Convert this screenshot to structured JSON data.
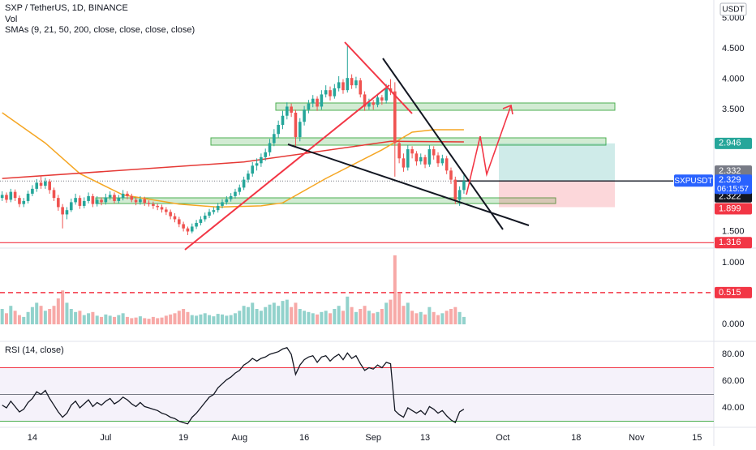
{
  "chart_data": {
    "type": "candlestick",
    "title": "SXP / TetherUS, 1D, BINANCE",
    "volume_label": "Vol",
    "sma_label": "SMAs (9, 21, 50, 200, close, close, close, close)",
    "rsi_label": "RSI (14, close)",
    "currency": "USDT",
    "symbol": "SXPUSDT",
    "last_price": 2.329,
    "countdown": "06:15:57",
    "up_color": "#26a69a",
    "down_color": "#ef5350",
    "xlim": [
      -0.5,
      164.9
    ],
    "xticks": [
      {
        "value": 7,
        "label": "14"
      },
      {
        "value": 24,
        "label": "Jul"
      },
      {
        "value": 42,
        "label": "19"
      },
      {
        "value": 55,
        "label": "Aug"
      },
      {
        "value": 70,
        "label": "16"
      },
      {
        "value": 86,
        "label": "Sep"
      },
      {
        "value": 98,
        "label": "13"
      },
      {
        "value": 116,
        "label": "Oct"
      },
      {
        "value": 133,
        "label": "18"
      },
      {
        "value": 147,
        "label": "Nov"
      },
      {
        "value": 161,
        "label": "15"
      }
    ],
    "ylim": [
      1.24,
      5.3
    ],
    "yticks": [
      {
        "value": 5,
        "label": "5.000"
      },
      {
        "value": 4.5,
        "label": "4.500"
      },
      {
        "value": 4,
        "label": "4.000"
      },
      {
        "value": 3.5,
        "label": "3.500"
      },
      {
        "value": 1.5,
        "label": "1.500"
      }
    ],
    "candles": [
      [
        2.05,
        2.16,
        2.0,
        2.1
      ],
      [
        2.1,
        2.14,
        1.97,
        2.02
      ],
      [
        2.02,
        2.2,
        1.98,
        2.15
      ],
      [
        2.15,
        2.19,
        2.0,
        2.05
      ],
      [
        2.05,
        2.09,
        1.9,
        1.95
      ],
      [
        1.95,
        2.05,
        1.9,
        2.0
      ],
      [
        2.0,
        2.17,
        1.96,
        2.12
      ],
      [
        2.12,
        2.26,
        2.08,
        2.2
      ],
      [
        2.2,
        2.36,
        2.15,
        2.3
      ],
      [
        2.3,
        2.42,
        2.2,
        2.25
      ],
      [
        2.25,
        2.38,
        2.2,
        2.32
      ],
      [
        2.32,
        2.36,
        2.12,
        2.18
      ],
      [
        2.18,
        2.22,
        2.0,
        2.05
      ],
      [
        2.05,
        2.1,
        1.84,
        1.9
      ],
      [
        1.9,
        1.95,
        1.55,
        1.78
      ],
      [
        1.78,
        1.9,
        1.7,
        1.85
      ],
      [
        1.85,
        2.04,
        1.82,
        1.98
      ],
      [
        1.98,
        2.12,
        1.94,
        2.05
      ],
      [
        2.05,
        2.09,
        1.87,
        1.92
      ],
      [
        1.92,
        2.06,
        1.88,
        2.0
      ],
      [
        2.0,
        2.14,
        1.96,
        2.08
      ],
      [
        2.08,
        2.12,
        1.9,
        1.95
      ],
      [
        1.95,
        2.08,
        1.91,
        2.02
      ],
      [
        2.02,
        2.06,
        1.93,
        1.98
      ],
      [
        1.98,
        2.12,
        1.94,
        2.06
      ],
      [
        2.06,
        2.16,
        2.02,
        2.1
      ],
      [
        2.1,
        2.14,
        1.96,
        2.0
      ],
      [
        2.0,
        2.1,
        1.96,
        2.05
      ],
      [
        2.05,
        2.18,
        2.01,
        2.12
      ],
      [
        2.12,
        2.16,
        2.03,
        2.08
      ],
      [
        2.08,
        2.12,
        1.98,
        2.02
      ],
      [
        2.02,
        2.06,
        1.93,
        1.98
      ],
      [
        1.98,
        2.08,
        1.94,
        2.03
      ],
      [
        2.03,
        2.07,
        1.92,
        1.97
      ],
      [
        1.97,
        2.01,
        1.91,
        1.95
      ],
      [
        1.95,
        1.99,
        1.87,
        1.92
      ],
      [
        1.92,
        1.96,
        1.85,
        1.9
      ],
      [
        1.9,
        1.94,
        1.81,
        1.86
      ],
      [
        1.86,
        1.9,
        1.77,
        1.82
      ],
      [
        1.82,
        1.86,
        1.7,
        1.75
      ],
      [
        1.75,
        1.8,
        1.65,
        1.7
      ],
      [
        1.7,
        1.74,
        1.57,
        1.62
      ],
      [
        1.62,
        1.66,
        1.5,
        1.55
      ],
      [
        1.55,
        1.58,
        1.44,
        1.5
      ],
      [
        1.5,
        1.63,
        1.47,
        1.58
      ],
      [
        1.58,
        1.69,
        1.54,
        1.64
      ],
      [
        1.64,
        1.75,
        1.6,
        1.7
      ],
      [
        1.7,
        1.81,
        1.66,
        1.76
      ],
      [
        1.76,
        1.87,
        1.72,
        1.82
      ],
      [
        1.82,
        1.9,
        1.78,
        1.85
      ],
      [
        1.85,
        1.97,
        1.81,
        1.92
      ],
      [
        1.92,
        2.03,
        1.88,
        1.98
      ],
      [
        1.98,
        2.08,
        1.94,
        2.03
      ],
      [
        2.03,
        2.13,
        1.99,
        2.08
      ],
      [
        2.08,
        2.2,
        2.04,
        2.15
      ],
      [
        2.15,
        2.27,
        2.1,
        2.22
      ],
      [
        2.22,
        2.4,
        2.18,
        2.35
      ],
      [
        2.35,
        2.5,
        2.3,
        2.45
      ],
      [
        2.45,
        2.64,
        2.4,
        2.58
      ],
      [
        2.58,
        2.7,
        2.5,
        2.62
      ],
      [
        2.62,
        2.78,
        2.56,
        2.72
      ],
      [
        2.72,
        2.86,
        2.66,
        2.8
      ],
      [
        2.8,
        3.02,
        2.74,
        2.95
      ],
      [
        2.95,
        3.18,
        2.9,
        3.1
      ],
      [
        3.1,
        3.32,
        3.04,
        3.25
      ],
      [
        3.25,
        3.48,
        3.18,
        3.4
      ],
      [
        3.4,
        3.62,
        3.34,
        3.55
      ],
      [
        3.55,
        3.6,
        3.38,
        3.45
      ],
      [
        3.45,
        3.5,
        2.88,
        3.05
      ],
      [
        3.05,
        3.36,
        2.98,
        3.3
      ],
      [
        3.3,
        3.56,
        3.24,
        3.5
      ],
      [
        3.5,
        3.66,
        3.44,
        3.6
      ],
      [
        3.6,
        3.74,
        3.54,
        3.68
      ],
      [
        3.68,
        3.72,
        3.48,
        3.55
      ],
      [
        3.55,
        3.82,
        3.5,
        3.75
      ],
      [
        3.75,
        3.9,
        3.7,
        3.82
      ],
      [
        3.82,
        3.88,
        3.65,
        3.72
      ],
      [
        3.72,
        3.92,
        3.68,
        3.85
      ],
      [
        3.85,
        4.05,
        3.8,
        3.95
      ],
      [
        3.95,
        4.0,
        3.76,
        3.82
      ],
      [
        3.82,
        4.55,
        3.78,
        4.02
      ],
      [
        4.02,
        4.08,
        3.84,
        3.9
      ],
      [
        3.9,
        4.04,
        3.85,
        3.98
      ],
      [
        3.98,
        4.02,
        3.7,
        3.75
      ],
      [
        3.75,
        3.8,
        3.48,
        3.55
      ],
      [
        3.55,
        3.68,
        3.5,
        3.62
      ],
      [
        3.62,
        3.66,
        3.5,
        3.58
      ],
      [
        3.58,
        3.76,
        3.54,
        3.7
      ],
      [
        3.7,
        3.74,
        3.58,
        3.65
      ],
      [
        3.65,
        3.92,
        3.6,
        3.85
      ],
      [
        3.85,
        4.0,
        3.74,
        3.8
      ],
      [
        3.8,
        3.95,
        2.4,
        2.95
      ],
      [
        2.95,
        3.0,
        2.62,
        2.7
      ],
      [
        2.7,
        2.78,
        2.48,
        2.55
      ],
      [
        2.55,
        2.92,
        2.5,
        2.85
      ],
      [
        2.85,
        2.9,
        2.7,
        2.78
      ],
      [
        2.78,
        2.82,
        2.58,
        2.65
      ],
      [
        2.65,
        2.78,
        2.6,
        2.72
      ],
      [
        2.72,
        2.76,
        2.54,
        2.6
      ],
      [
        2.6,
        2.92,
        2.56,
        2.85
      ],
      [
        2.85,
        2.9,
        2.68,
        2.75
      ],
      [
        2.75,
        2.8,
        2.56,
        2.62
      ],
      [
        2.62,
        2.76,
        2.58,
        2.7
      ],
      [
        2.7,
        2.74,
        2.44,
        2.5
      ],
      [
        2.5,
        2.55,
        2.28,
        2.35
      ],
      [
        2.35,
        2.4,
        1.95,
        2.02
      ],
      [
        2.02,
        2.24,
        1.92,
        2.18
      ],
      [
        2.18,
        2.45,
        2.12,
        2.329
      ]
    ],
    "smas": [
      {
        "color": "#f5a623",
        "x": [
          0,
          10,
          18,
          28,
          41,
          50,
          60,
          65,
          75,
          88,
          95,
          100,
          107
        ],
        "values": [
          3.45,
          2.95,
          2.45,
          2.1,
          1.95,
          1.9,
          1.92,
          1.97,
          2.37,
          2.84,
          3.13,
          3.17,
          3.17
        ]
      },
      {
        "color": "#e53935",
        "x": [
          0,
          56,
          90,
          107
        ],
        "values": [
          2.37,
          2.64,
          2.98,
          2.97
        ]
      }
    ],
    "levels": [
      {
        "value": 1.316,
        "color": "#f23645"
      }
    ],
    "position": {
      "target": 2.946,
      "stop": 1.899
    },
    "price_labels": [
      {
        "value": 2.332,
        "color": "#787b86"
      },
      {
        "value": 2.322,
        "color": "#131722"
      }
    ],
    "volume": {
      "ylim": [
        -0.263,
        1.25
      ],
      "yticks": [
        {
          "value": 1,
          "label": "1.000"
        },
        {
          "value": 0,
          "label": "0.000"
        }
      ],
      "level": {
        "value": 0.515,
        "color": "#f23645"
      },
      "values": [
        0.25,
        0.18,
        0.3,
        0.22,
        0.15,
        0.12,
        0.2,
        0.28,
        0.35,
        0.3,
        0.22,
        0.25,
        0.3,
        0.42,
        0.55,
        0.35,
        0.25,
        0.2,
        0.22,
        0.15,
        0.18,
        0.2,
        0.14,
        0.12,
        0.16,
        0.14,
        0.12,
        0.15,
        0.18,
        0.12,
        0.1,
        0.11,
        0.13,
        0.1,
        0.09,
        0.12,
        0.1,
        0.11,
        0.14,
        0.16,
        0.18,
        0.22,
        0.25,
        0.2,
        0.15,
        0.14,
        0.16,
        0.18,
        0.15,
        0.13,
        0.17,
        0.16,
        0.14,
        0.15,
        0.18,
        0.22,
        0.3,
        0.28,
        0.35,
        0.25,
        0.22,
        0.28,
        0.32,
        0.35,
        0.3,
        0.38,
        0.4,
        0.28,
        0.35,
        0.25,
        0.22,
        0.2,
        0.18,
        0.16,
        0.2,
        0.22,
        0.18,
        0.25,
        0.3,
        0.22,
        0.45,
        0.28,
        0.2,
        0.25,
        0.3,
        0.22,
        0.18,
        0.2,
        0.25,
        0.35,
        0.4,
        1.12,
        0.5,
        0.3,
        0.35,
        0.22,
        0.18,
        0.2,
        0.16,
        0.28,
        0.2,
        0.15,
        0.18,
        0.22,
        0.25,
        0.28,
        0.2,
        0.12
      ]
    },
    "rsi": {
      "color": "#131722",
      "ylim": [
        26.67,
        89.1
      ],
      "yticks": [
        {
          "value": 80,
          "label": "80.00"
        },
        {
          "value": 60,
          "label": "60.00"
        },
        {
          "value": 40,
          "label": "40.00"
        }
      ],
      "levels": [
        {
          "value": 70,
          "color": "#f23645"
        },
        {
          "value": 50,
          "color": "#787b86"
        },
        {
          "value": 30,
          "color": "#4caf50"
        }
      ],
      "values": [
        42,
        40,
        45,
        41,
        37,
        39,
        44,
        47,
        52,
        50,
        53,
        47,
        42,
        37,
        33,
        36,
        42,
        45,
        40,
        43,
        46,
        41,
        44,
        42,
        45,
        47,
        43,
        45,
        48,
        46,
        43,
        41,
        44,
        41,
        40,
        39,
        38,
        36,
        35,
        33,
        32,
        30,
        29,
        28,
        33,
        36,
        40,
        44,
        48,
        50,
        55,
        58,
        61,
        63,
        66,
        68,
        72,
        74,
        77,
        75,
        77,
        78,
        80,
        81,
        82,
        84,
        85,
        80,
        65,
        72,
        76,
        78,
        79,
        74,
        78,
        79,
        75,
        78,
        80,
        76,
        81,
        77,
        79,
        73,
        68,
        70,
        69,
        72,
        70,
        74,
        73,
        38,
        35,
        33,
        40,
        38,
        36,
        38,
        35,
        41,
        39,
        36,
        38,
        34,
        31,
        29,
        37,
        39
      ]
    }
  }
}
